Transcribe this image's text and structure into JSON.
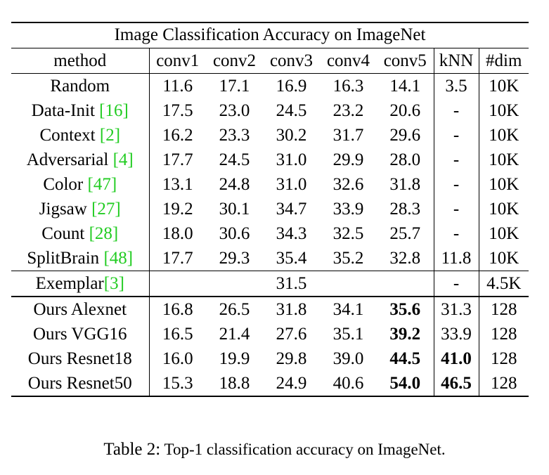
{
  "table": {
    "title": "Image Classification Accuracy on ImageNet",
    "columns": [
      "method",
      "conv1",
      "conv2",
      "conv3",
      "conv4",
      "conv5",
      "kNN",
      "#dim"
    ],
    "rows_a": [
      {
        "method": "Random",
        "cite": "",
        "values": [
          "11.6",
          "17.1",
          "16.9",
          "16.3",
          "14.1"
        ],
        "knn": "3.5",
        "dim": "10K"
      },
      {
        "method": "Data-Init ",
        "cite": "[16]",
        "values": [
          "17.5",
          "23.0",
          "24.5",
          "23.2",
          "20.6"
        ],
        "knn": "-",
        "dim": "10K"
      },
      {
        "method": "Context ",
        "cite": "[2]",
        "values": [
          "16.2",
          "23.3",
          "30.2",
          "31.7",
          "29.6"
        ],
        "knn": "-",
        "dim": "10K"
      },
      {
        "method": "Adversarial ",
        "cite": "[4]",
        "values": [
          "17.7",
          "24.5",
          "31.0",
          "29.9",
          "28.0"
        ],
        "knn": "-",
        "dim": "10K"
      },
      {
        "method": "Color ",
        "cite": "[47]",
        "values": [
          "13.1",
          "24.8",
          "31.0",
          "32.6",
          "31.8"
        ],
        "knn": "-",
        "dim": "10K"
      },
      {
        "method": "Jigsaw ",
        "cite": "[27]",
        "values": [
          "19.2",
          "30.1",
          "34.7",
          "33.9",
          "28.3"
        ],
        "knn": "-",
        "dim": "10K"
      },
      {
        "method": "Count ",
        "cite": "[28]",
        "values": [
          "18.0",
          "30.6",
          "34.3",
          "32.5",
          "25.7"
        ],
        "knn": "-",
        "dim": "10K"
      },
      {
        "method": "SplitBrain ",
        "cite": "[48]",
        "values": [
          "17.7",
          "29.3",
          "35.4",
          "35.2",
          "32.8"
        ],
        "knn": "11.8",
        "dim": "10K"
      }
    ],
    "exemplar": {
      "method": "Exemplar",
      "cite": "[3]",
      "value": "31.5",
      "knn": "-",
      "dim": "4.5K"
    },
    "rows_ours": [
      {
        "method": "Ours Alexnet",
        "values": [
          "16.8",
          "26.5",
          "31.8",
          "34.1",
          "35.6"
        ],
        "knn": "31.3",
        "dim": "128",
        "bold_conv5": true,
        "bold_knn": false
      },
      {
        "method": "Ours VGG16",
        "values": [
          "16.5",
          "21.4",
          "27.6",
          "35.1",
          "39.2"
        ],
        "knn": "33.9",
        "dim": "128",
        "bold_conv5": true,
        "bold_knn": false
      },
      {
        "method": "Ours Resnet18",
        "values": [
          "16.0",
          "19.9",
          "29.8",
          "39.0",
          "44.5"
        ],
        "knn": "41.0",
        "dim": "128",
        "bold_conv5": true,
        "bold_knn": true
      },
      {
        "method": "Ours Resnet50",
        "values": [
          "15.3",
          "18.8",
          "24.9",
          "40.6",
          "54.0"
        ],
        "knn": "46.5",
        "dim": "128",
        "bold_conv5": true,
        "bold_knn": true
      }
    ]
  },
  "caption": {
    "label": "Table 2:",
    "text": " Top-1 classification accuracy on ImageNet."
  }
}
